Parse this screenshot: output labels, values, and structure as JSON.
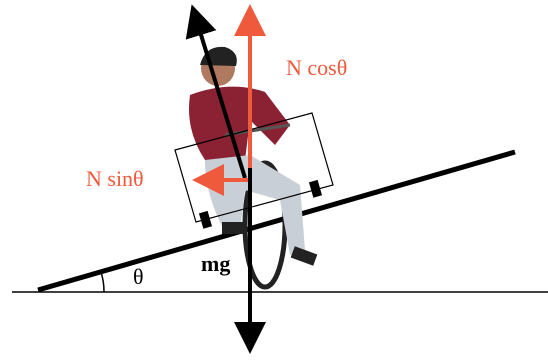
{
  "labels": {
    "vertical_component": "N cosθ",
    "horizontal_component": "N sinθ",
    "weight": "mg",
    "angle": "θ"
  }
}
